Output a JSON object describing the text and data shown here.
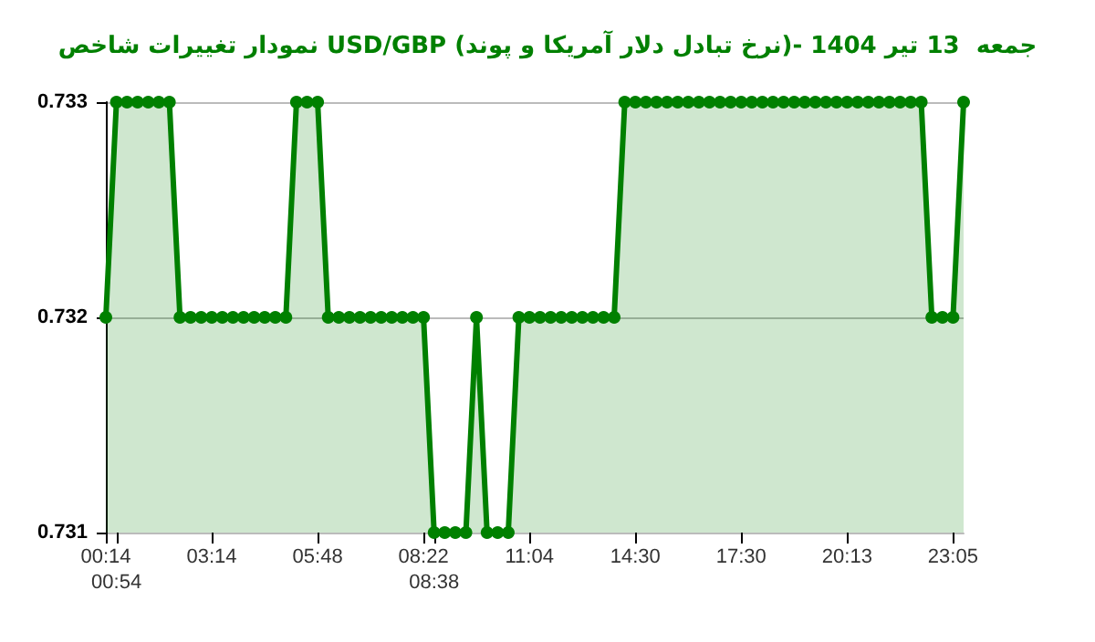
{
  "chart_data": {
    "type": "area",
    "title": "نمودار تغییرات شاخص USD/GBP (نرخ تبادل دلار آمریکا و پوند)- جمعه  13 تیر 1404",
    "categories": [
      "00:14",
      "00:54",
      null,
      null,
      null,
      null,
      null,
      null,
      null,
      null,
      "03:14",
      null,
      null,
      null,
      null,
      null,
      null,
      null,
      null,
      null,
      "05:48",
      null,
      null,
      null,
      null,
      null,
      null,
      null,
      null,
      null,
      "08:22",
      "08:38",
      null,
      null,
      null,
      null,
      null,
      null,
      null,
      null,
      "11:04",
      null,
      null,
      null,
      null,
      null,
      null,
      null,
      null,
      null,
      "14:30",
      null,
      null,
      null,
      null,
      null,
      null,
      null,
      null,
      null,
      "17:30",
      null,
      null,
      null,
      null,
      null,
      null,
      null,
      null,
      null,
      "20:13",
      null,
      null,
      null,
      null,
      null,
      null,
      null,
      null,
      null,
      "23:05",
      null
    ],
    "series": [
      {
        "color": "#008000",
        "values": [
          0.732,
          0.733,
          0.733,
          0.733,
          0.733,
          0.733,
          0.733,
          0.732,
          0.732,
          0.732,
          0.732,
          0.732,
          0.732,
          0.732,
          0.732,
          0.732,
          0.732,
          0.732,
          0.733,
          0.733,
          0.733,
          0.732,
          0.732,
          0.732,
          0.732,
          0.732,
          0.732,
          0.732,
          0.732,
          0.732,
          0.732,
          0.731,
          0.731,
          0.731,
          0.731,
          0.732,
          0.731,
          0.731,
          0.731,
          0.732,
          0.732,
          0.732,
          0.732,
          0.732,
          0.732,
          0.732,
          0.732,
          0.732,
          0.732,
          0.733,
          0.733,
          0.733,
          0.733,
          0.733,
          0.733,
          0.733,
          0.733,
          0.733,
          0.733,
          0.733,
          0.733,
          0.733,
          0.733,
          0.733,
          0.733,
          0.733,
          0.733,
          0.733,
          0.733,
          0.733,
          0.733,
          0.733,
          0.733,
          0.733,
          0.733,
          0.733,
          0.733,
          0.733,
          0.732,
          0.732,
          0.732,
          0.733
        ]
      }
    ],
    "ylim": [
      0.731,
      0.733
    ],
    "yticks": [
      0.731,
      0.732,
      0.733
    ],
    "grid": "y",
    "marker": "circle",
    "line_style": "solid"
  }
}
